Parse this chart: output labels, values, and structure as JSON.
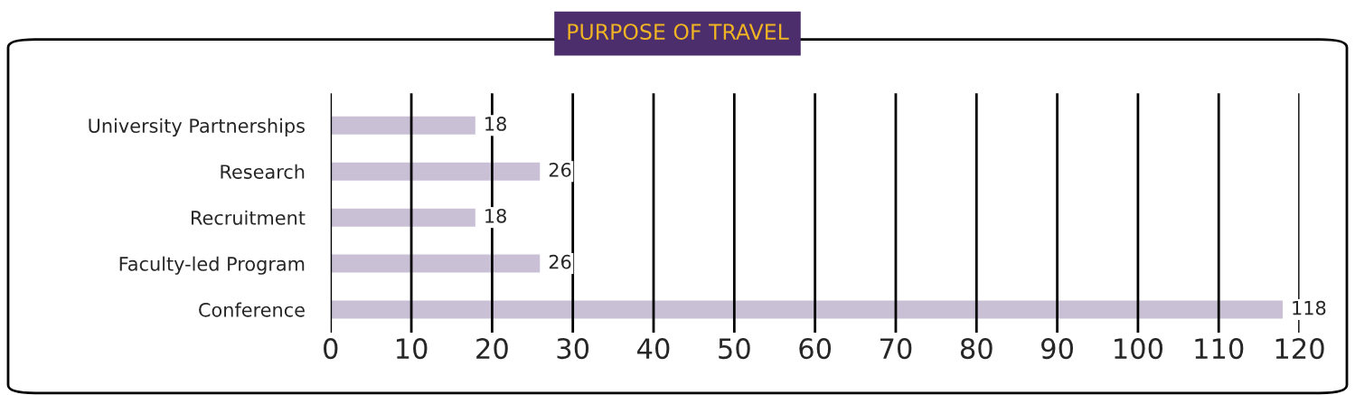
{
  "chart_data": {
    "type": "bar",
    "title": "PURPOSE OF TRAVEL",
    "orientation": "horizontal",
    "categories": [
      "University Partnerships",
      "Research",
      "Recruitment",
      "Faculty-led Program",
      "Conference"
    ],
    "values": [
      18,
      26,
      18,
      26,
      118
    ],
    "color": "#c9c0d6",
    "xlim": [
      0,
      120
    ],
    "xticks": [
      0,
      10,
      20,
      30,
      40,
      50,
      60,
      70,
      80,
      90,
      100,
      110,
      120
    ],
    "grid": "x",
    "data_labels": true
  }
}
